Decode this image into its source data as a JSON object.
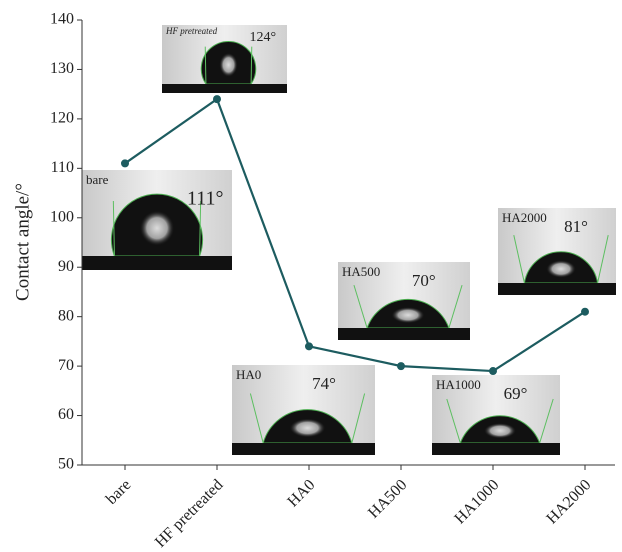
{
  "chart_data": {
    "type": "line",
    "y_label": "Contact angle/°",
    "categories": [
      "bare",
      "HF pretreated",
      "HA0",
      "HA500",
      "HA1000",
      "HA2000"
    ],
    "values": [
      111,
      124,
      74,
      70,
      69,
      81
    ],
    "value_labels": [
      "111°",
      "124°",
      "74°",
      "70°",
      "69°",
      "81°"
    ],
    "color": "#1d5c60",
    "ylim": [
      50,
      140
    ],
    "yticks": [
      50,
      60,
      70,
      80,
      90,
      100,
      110,
      120,
      130,
      140
    ]
  }
}
